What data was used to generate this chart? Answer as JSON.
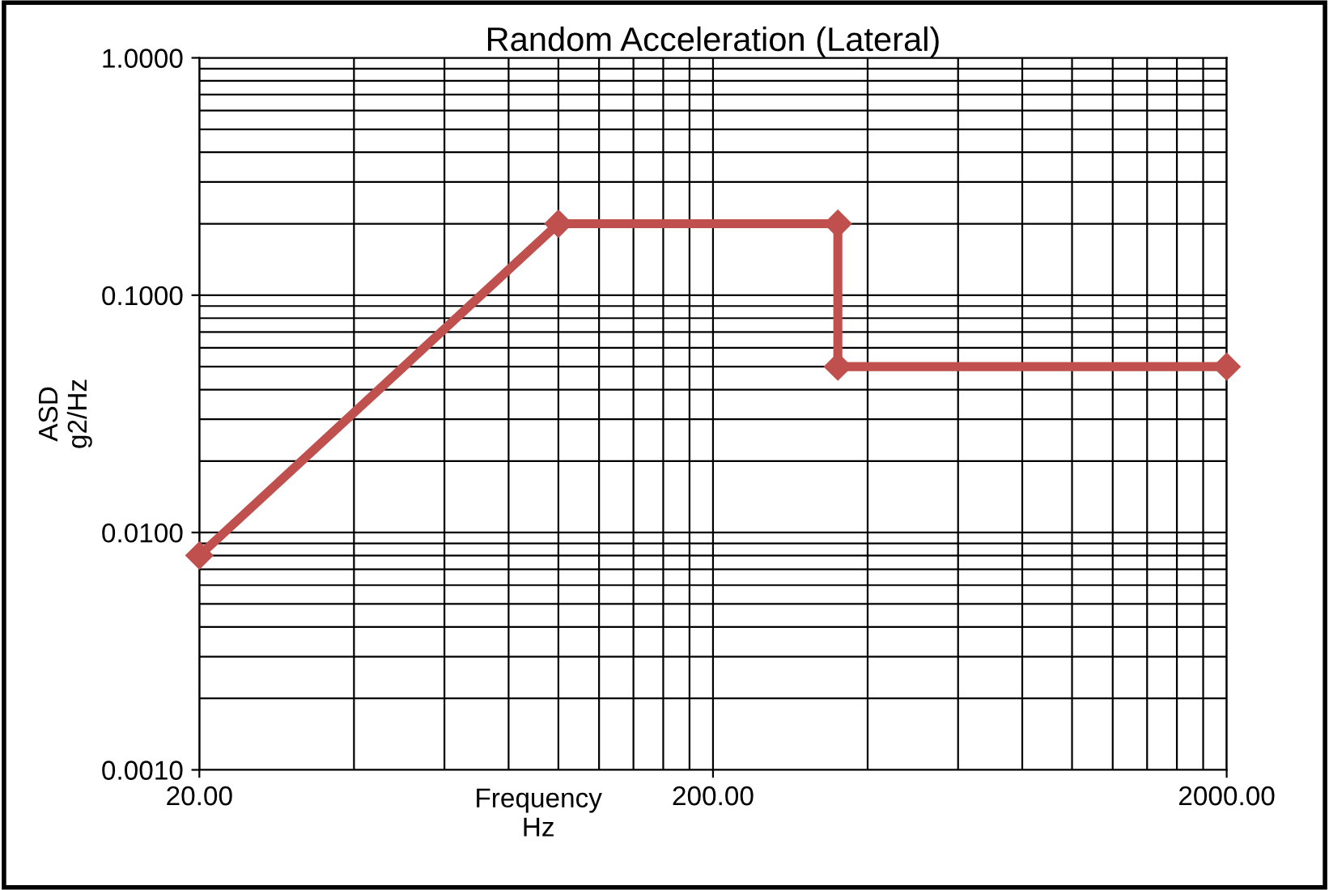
{
  "chart_data": {
    "type": "line",
    "title": "Random Acceleration (Lateral)",
    "xlabel": "Frequency\nHz",
    "ylabel": "ASD\ng2/Hz",
    "log": "xy",
    "x": [
      20,
      100,
      350,
      350,
      2000
    ],
    "series": [
      {
        "color": "#c0504d",
        "values": [
          0.008,
          0.2,
          0.2,
          0.05,
          0.05
        ]
      }
    ],
    "xlim": [
      20,
      2000
    ],
    "ylim": [
      0.001,
      1
    ],
    "xticks": [
      {
        "value": 20,
        "label": "20.00"
      },
      {
        "value": 200,
        "label": "200.00"
      },
      {
        "value": 2000,
        "label": "2000.00"
      }
    ],
    "yticks": [
      {
        "value": 0.001,
        "label": "0.0010"
      },
      {
        "value": 0.01,
        "label": "0.0100"
      },
      {
        "value": 0.1,
        "label": "0.1000"
      },
      {
        "value": 1,
        "label": "1.0000"
      }
    ],
    "grid": true,
    "marker": "diamond",
    "line_style": "solid"
  }
}
